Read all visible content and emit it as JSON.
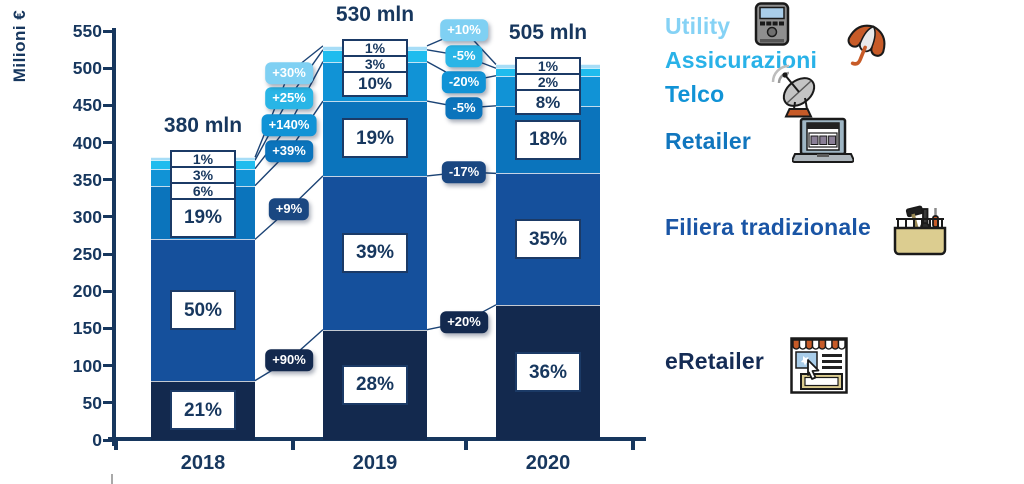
{
  "chart_data": {
    "type": "bar",
    "subtype": "stacked-composition",
    "ylabel": "Milioni €",
    "ylim": [
      0,
      550
    ],
    "ytick_step": 50,
    "yticks": [
      0,
      50,
      100,
      150,
      200,
      250,
      300,
      350,
      400,
      450,
      500,
      550
    ],
    "grid": false,
    "legend_position": "right",
    "categories": [
      "2018",
      "2019",
      "2020"
    ],
    "totals": [
      380,
      530,
      505
    ],
    "total_labels": [
      "380 mln",
      "530 mln",
      "505 mln"
    ],
    "series_note": "series listed bottom-up as stacked; shares_pct per year; growth = year-over-year labels shown in gaps",
    "series": [
      {
        "name": "eRetailer",
        "color": "#13294E",
        "pill_color": "#13294E",
        "shares_pct": [
          21,
          28,
          36
        ],
        "growth": [
          "+90%",
          "+20%"
        ]
      },
      {
        "name": "Filiera tradizionale",
        "color": "#15509C",
        "pill_color": "#1A4781",
        "shares_pct": [
          50,
          39,
          35
        ],
        "growth": [
          "+9%",
          "-17%"
        ]
      },
      {
        "name": "Retailer",
        "color": "#0B74BC",
        "pill_color": "#0B74BC",
        "shares_pct": [
          19,
          19,
          18
        ],
        "growth": [
          "+39%",
          "-5%"
        ]
      },
      {
        "name": "Telco",
        "color": "#1193D6",
        "pill_color": "#1193D6",
        "shares_pct": [
          6,
          10,
          8
        ],
        "growth": [
          "+140%",
          "-20%"
        ]
      },
      {
        "name": "Assicurazioni",
        "color": "#1FBCEE",
        "pill_color": "#29B5E6",
        "shares_pct": [
          3,
          3,
          2
        ],
        "growth": [
          "+25%",
          "-5%"
        ]
      },
      {
        "name": "Utility",
        "color": "#A7DDF7",
        "pill_color": "#7FD0F3",
        "shares_pct": [
          1,
          1,
          1
        ],
        "growth": [
          "+30%",
          "+10%"
        ]
      }
    ]
  },
  "legend": {
    "items": [
      {
        "label": "Utility",
        "color": "#85D2F5",
        "icon": "smart-meter-icon"
      },
      {
        "label": "Assicurazioni",
        "color": "#29B2E8",
        "icon": "umbrella-icon"
      },
      {
        "label": "Telco",
        "color": "#1193D6",
        "icon": "satellite-dish-icon"
      },
      {
        "label": "Retailer",
        "color": "#1176BE",
        "icon": "laptop-shop-icon"
      },
      {
        "label": "Filiera tradizionale",
        "color": "#1A55A5",
        "icon": "toolbox-icon"
      },
      {
        "label": "eRetailer",
        "color": "#152C55",
        "icon": "online-shop-icon"
      }
    ]
  }
}
